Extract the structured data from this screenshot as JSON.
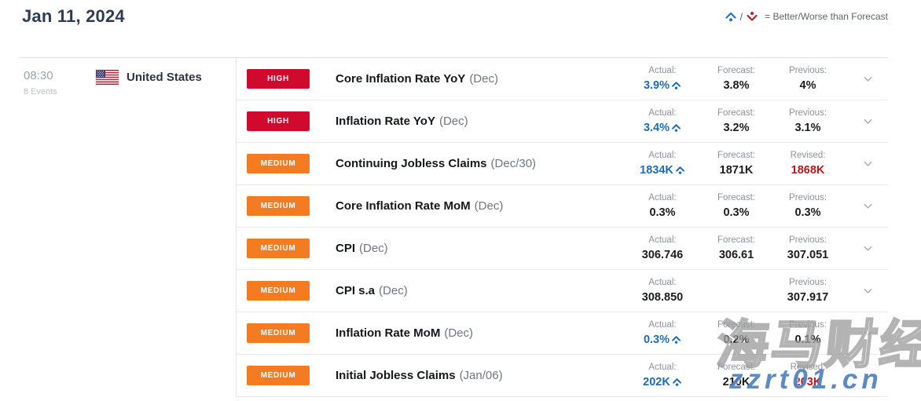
{
  "header": {
    "date": "Jan 11, 2024"
  },
  "legend": {
    "separator": "/",
    "text": "= Better/Worse than Forecast",
    "better_color": "#2273c3",
    "worse_color": "#b4212e"
  },
  "group": {
    "time": "08:30",
    "events_count": "8 Events",
    "country": "United States"
  },
  "importance_colors": {
    "HIGH": "#cf0a2c",
    "MEDIUM": "#f47b20"
  },
  "value_colors": {
    "plain": "#1b1c1e",
    "better": "#1e6cb5",
    "revised": "#b0191f",
    "none": "#1b1c1e"
  },
  "rows": [
    {
      "importance": "HIGH",
      "name": "Core Inflation Rate YoY",
      "period": "(Dec)",
      "columns": [
        {
          "label": "Actual:",
          "value": "3.9%",
          "style": "better"
        },
        {
          "label": "Forecast:",
          "value": "3.8%",
          "style": "plain"
        },
        {
          "label": "Previous:",
          "value": "4%",
          "style": "plain"
        }
      ]
    },
    {
      "importance": "HIGH",
      "name": "Inflation Rate YoY",
      "period": "(Dec)",
      "columns": [
        {
          "label": "Actual:",
          "value": "3.4%",
          "style": "better"
        },
        {
          "label": "Forecast:",
          "value": "3.2%",
          "style": "plain"
        },
        {
          "label": "Previous:",
          "value": "3.1%",
          "style": "plain"
        }
      ]
    },
    {
      "importance": "MEDIUM",
      "name": "Continuing Jobless Claims",
      "period": "(Dec/30)",
      "columns": [
        {
          "label": "Actual:",
          "value": "1834K",
          "style": "better"
        },
        {
          "label": "Forecast:",
          "value": "1871K",
          "style": "plain"
        },
        {
          "label": "Revised:",
          "value": "1868K",
          "style": "revised"
        }
      ]
    },
    {
      "importance": "MEDIUM",
      "name": "Core Inflation Rate MoM",
      "period": "(Dec)",
      "columns": [
        {
          "label": "Actual:",
          "value": "0.3%",
          "style": "plain"
        },
        {
          "label": "Forecast:",
          "value": "0.3%",
          "style": "plain"
        },
        {
          "label": "Previous:",
          "value": "0.3%",
          "style": "plain"
        }
      ]
    },
    {
      "importance": "MEDIUM",
      "name": "CPI",
      "period": "(Dec)",
      "columns": [
        {
          "label": "Actual:",
          "value": "306.746",
          "style": "plain"
        },
        {
          "label": "Forecast:",
          "value": "306.61",
          "style": "plain"
        },
        {
          "label": "Previous:",
          "value": "307.051",
          "style": "plain"
        }
      ]
    },
    {
      "importance": "MEDIUM",
      "name": "CPI s.a",
      "period": "(Dec)",
      "columns": [
        {
          "label": "Actual:",
          "value": "308.850",
          "style": "plain"
        },
        {
          "label": "",
          "value": "",
          "style": "none"
        },
        {
          "label": "Previous:",
          "value": "307.917",
          "style": "plain"
        }
      ]
    },
    {
      "importance": "MEDIUM",
      "name": "Inflation Rate MoM",
      "period": "(Dec)",
      "columns": [
        {
          "label": "Actual:",
          "value": "0.3%",
          "style": "better"
        },
        {
          "label": "Forecast:",
          "value": "0.2%",
          "style": "plain"
        },
        {
          "label": "Previous:",
          "value": "0.1%",
          "style": "plain"
        }
      ]
    },
    {
      "importance": "MEDIUM",
      "name": "Initial Jobless Claims",
      "period": "(Jan/06)",
      "columns": [
        {
          "label": "Actual:",
          "value": "202K",
          "style": "better"
        },
        {
          "label": "Forecast:",
          "value": "210K",
          "style": "plain"
        },
        {
          "label": "Revised:",
          "value": "203K",
          "style": "revised"
        }
      ]
    }
  ],
  "watermark": {
    "line1": "海马财经",
    "line2": "zzrt01.cn"
  }
}
